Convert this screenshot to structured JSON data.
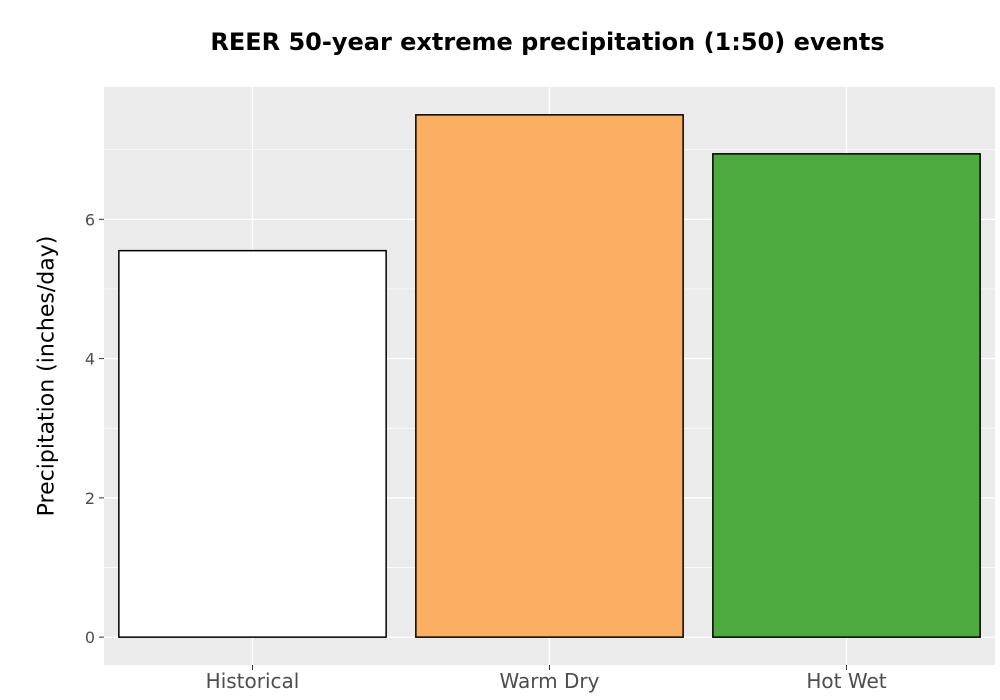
{
  "chart_data": {
    "type": "bar",
    "title": "REER 50-year extreme precipitation (1:50) events",
    "xlabel": "",
    "ylabel": "Precipitation (inches/day)",
    "categories": [
      "Historical",
      "Warm Dry",
      "Hot Wet"
    ],
    "values": [
      5.55,
      7.5,
      6.94
    ],
    "colors": [
      "#ffffff",
      "#fcae63",
      "#4daa3e"
    ],
    "ylim": [
      -0.4,
      7.9
    ],
    "yticks": [
      0,
      2,
      4,
      6
    ],
    "grid": true,
    "panel_background": "#ebebeb",
    "bar_outline": "#000000"
  }
}
